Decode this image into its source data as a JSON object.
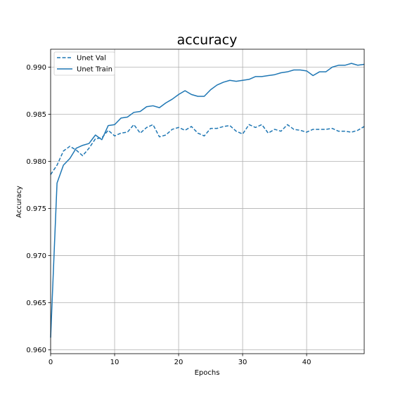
{
  "chart_data": {
    "type": "line",
    "title": "accuracy",
    "xlabel": "Epochs",
    "ylabel": "Accuracy",
    "xlim": [
      0,
      49
    ],
    "ylim": [
      0.9596,
      0.9919
    ],
    "x_ticks": [
      0,
      10,
      20,
      30,
      40
    ],
    "x_tick_labels": [
      "0",
      "10",
      "20",
      "30",
      "40"
    ],
    "y_ticks": [
      0.96,
      0.965,
      0.97,
      0.975,
      0.98,
      0.985,
      0.99
    ],
    "y_tick_labels": [
      "0.960",
      "0.965",
      "0.970",
      "0.975",
      "0.980",
      "0.985",
      "0.990"
    ],
    "grid": true,
    "legend_position": "top-left",
    "color": "#1f77b4",
    "x": [
      0,
      1,
      2,
      3,
      4,
      5,
      6,
      7,
      8,
      9,
      10,
      11,
      12,
      13,
      14,
      15,
      16,
      17,
      18,
      19,
      20,
      21,
      22,
      23,
      24,
      25,
      26,
      27,
      28,
      29,
      30,
      31,
      32,
      33,
      34,
      35,
      36,
      37,
      38,
      39,
      40,
      41,
      42,
      43,
      44,
      45,
      46,
      47,
      48,
      49
    ],
    "series": [
      {
        "name": "Unet Val",
        "style": "dashed",
        "values": [
          0.9786,
          0.9796,
          0.9811,
          0.9816,
          0.9812,
          0.9806,
          0.9814,
          0.9824,
          0.9825,
          0.9833,
          0.9827,
          0.983,
          0.9831,
          0.9839,
          0.983,
          0.9836,
          0.9839,
          0.9826,
          0.9828,
          0.9834,
          0.9836,
          0.9833,
          0.9837,
          0.983,
          0.9827,
          0.9835,
          0.9835,
          0.9837,
          0.9838,
          0.9832,
          0.9829,
          0.9839,
          0.9836,
          0.9839,
          0.983,
          0.9834,
          0.9832,
          0.9839,
          0.9834,
          0.9833,
          0.9831,
          0.9834,
          0.9834,
          0.9834,
          0.9835,
          0.9832,
          0.9832,
          0.9831,
          0.9833,
          0.9837
        ]
      },
      {
        "name": "Unet Train",
        "style": "solid",
        "values": [
          0.9613,
          0.9777,
          0.9796,
          0.9803,
          0.9814,
          0.9817,
          0.9819,
          0.9828,
          0.9823,
          0.9838,
          0.9839,
          0.9846,
          0.9847,
          0.9852,
          0.9853,
          0.9858,
          0.9859,
          0.9857,
          0.9862,
          0.9866,
          0.9871,
          0.9875,
          0.9871,
          0.9869,
          0.9869,
          0.9876,
          0.9881,
          0.9884,
          0.9886,
          0.9885,
          0.9886,
          0.9887,
          0.989,
          0.989,
          0.9891,
          0.9892,
          0.9894,
          0.9895,
          0.9897,
          0.9897,
          0.9896,
          0.9891,
          0.9895,
          0.9895,
          0.99,
          0.9902,
          0.9902,
          0.9904,
          0.9902,
          0.9903
        ]
      }
    ]
  }
}
